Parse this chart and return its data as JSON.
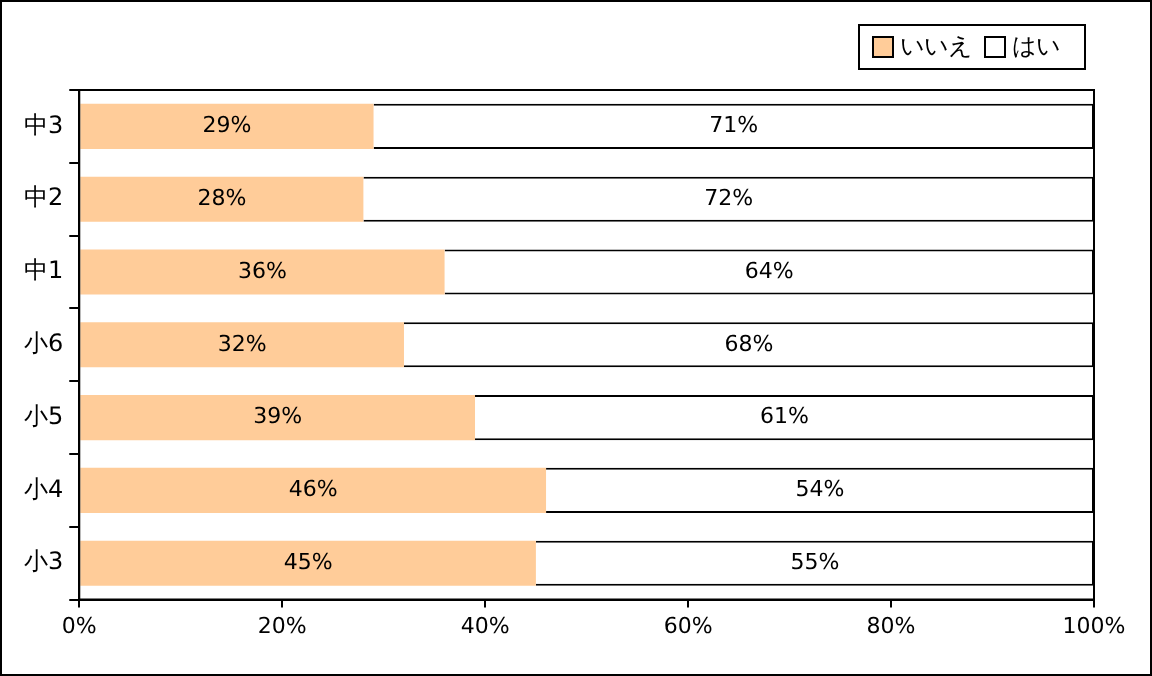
{
  "chart_data": {
    "type": "bar",
    "orientation": "horizontal",
    "stacked": true,
    "categories": [
      "中3",
      "中2",
      "中1",
      "小6",
      "小5",
      "小4",
      "小3"
    ],
    "series": [
      {
        "name": "いいえ",
        "color": "#ffcc99",
        "values": [
          29,
          28,
          36,
          32,
          39,
          46,
          45
        ]
      },
      {
        "name": "はい",
        "color": "#ffffff",
        "values": [
          71,
          72,
          64,
          68,
          61,
          54,
          55
        ]
      }
    ],
    "xlim": [
      0,
      100
    ],
    "xticks": [
      {
        "value": 0,
        "label": "0%"
      },
      {
        "value": 20,
        "label": "20%"
      },
      {
        "value": 40,
        "label": "40%"
      },
      {
        "value": 60,
        "label": "60%"
      },
      {
        "value": 80,
        "label": "80%"
      },
      {
        "value": 100,
        "label": "100%"
      }
    ],
    "value_labels": [
      [
        "29%",
        "28%",
        "36%",
        "32%",
        "39%",
        "46%",
        "45%"
      ],
      [
        "71%",
        "72%",
        "64%",
        "68%",
        "61%",
        "54%",
        "55%"
      ]
    ],
    "grid": false,
    "legend": "top right"
  }
}
